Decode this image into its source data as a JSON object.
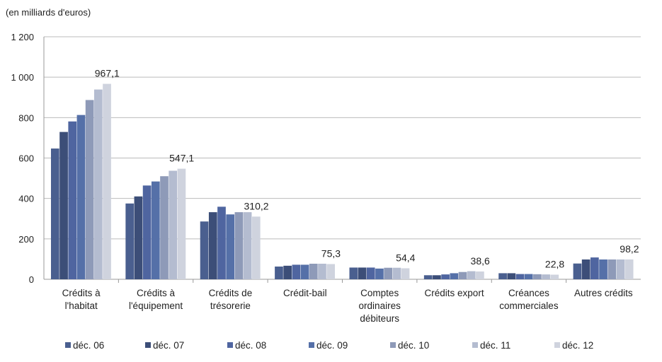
{
  "chart_data": {
    "type": "bar",
    "unit_label": "(en milliards d'euros)",
    "categories": [
      [
        "Crédits à",
        "l'habitat"
      ],
      [
        "Crédits à",
        "l'équipement"
      ],
      [
        "Crédits de",
        "trésorerie"
      ],
      [
        "Crédit-bail"
      ],
      [
        "Comptes",
        "ordinaires",
        "débiteurs"
      ],
      [
        "Crédits export"
      ],
      [
        "Créances",
        "commerciales"
      ],
      [
        "Autres crédits"
      ]
    ],
    "ylim": [
      0,
      1200
    ],
    "yticks": [
      0,
      200,
      400,
      600,
      800,
      1000,
      1200
    ],
    "ytick_labels": [
      "0",
      "200",
      "400",
      "600",
      "800",
      "1 000",
      "1 200"
    ],
    "grid": true,
    "legend_position": "bottom",
    "series": [
      {
        "name": "déc. 06",
        "color": "#4a5f8f",
        "values": [
          647,
          375,
          286,
          63,
          58,
          20,
          30,
          78
        ]
      },
      {
        "name": "déc. 07",
        "color": "#3c4e78",
        "values": [
          729,
          410,
          332,
          67,
          58,
          20,
          30,
          98
        ]
      },
      {
        "name": "déc. 08",
        "color": "#4f65a0",
        "values": [
          781,
          464,
          359,
          72,
          58,
          24,
          26,
          108
        ]
      },
      {
        "name": "déc. 09",
        "color": "#5570a8",
        "values": [
          813,
          484,
          321,
          72,
          53,
          30,
          26,
          98
        ]
      },
      {
        "name": "déc. 10",
        "color": "#8e9ab8",
        "values": [
          887,
          510,
          332,
          77,
          57,
          36,
          25,
          98
        ]
      },
      {
        "name": "déc. 11",
        "color": "#b4bcd0",
        "values": [
          939,
          537,
          332,
          77,
          57,
          40,
          24,
          98
        ]
      },
      {
        "name": "déc. 12",
        "color": "#cfd3de",
        "values": [
          967.1,
          547.1,
          310.2,
          75.3,
          54.4,
          38.6,
          22.8,
          98.2
        ]
      }
    ],
    "data_labels": [
      "967,1",
      "547,1",
      "310,2",
      "75,3",
      "54,4",
      "38,6",
      "22,8",
      "98,2"
    ]
  }
}
